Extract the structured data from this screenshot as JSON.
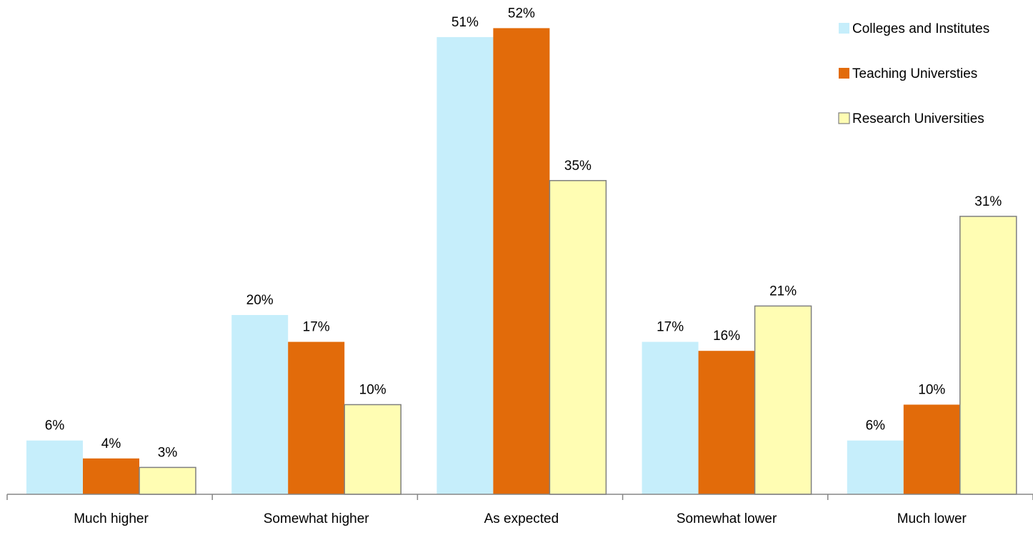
{
  "chart_data": {
    "type": "bar",
    "title": "",
    "xlabel": "",
    "ylabel": "",
    "categories": [
      "Much higher",
      "Somewhat higher",
      "As expected",
      "Somewhat lower",
      "Much lower"
    ],
    "series": [
      {
        "name": "Colleges and Institutes",
        "values": [
          6,
          20,
          51,
          17,
          6
        ],
        "labels": [
          "6%",
          "20%",
          "51%",
          "17%",
          "6%"
        ],
        "color": "#C6EEFB",
        "border": "none"
      },
      {
        "name": "Teaching Universties",
        "values": [
          4,
          17,
          52,
          16,
          10
        ],
        "labels": [
          "4%",
          "17%",
          "52%",
          "16%",
          "10%"
        ],
        "color": "#E26B0A",
        "border": "none"
      },
      {
        "name": "Research Universities",
        "values": [
          3,
          10,
          35,
          21,
          31
        ],
        "labels": [
          "3%",
          "10%",
          "35%",
          "21%",
          "31%"
        ],
        "color": "#FFFDB3",
        "border": "#7F7F7F"
      }
    ],
    "ylim": [
      0,
      55
    ],
    "grid": false,
    "legend_position": "top-right",
    "y_axis_visible": false
  }
}
